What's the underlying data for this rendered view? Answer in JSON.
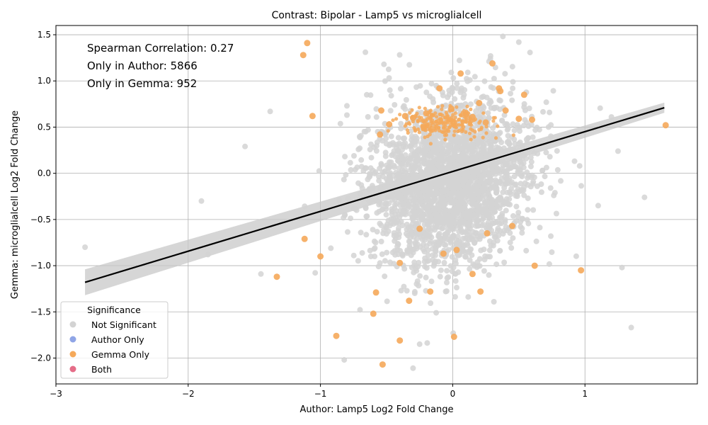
{
  "chart_data": {
    "type": "scatter",
    "title": "Contrast: Bipolar - Lamp5 vs microglialcell",
    "xlabel": "Author: Lamp5 Log2 Fold Change",
    "ylabel": "Gemma: microglialcell Log2 Fold Change",
    "xlim": [
      -3.0,
      1.85
    ],
    "ylim": [
      -2.28,
      1.6
    ],
    "xticks": [
      -3,
      -2,
      -1,
      0,
      1
    ],
    "xtick_labels": [
      "−3",
      "−2",
      "−1",
      "0",
      "1"
    ],
    "yticks": [
      -2.0,
      -1.5,
      -1.0,
      -0.5,
      0.0,
      0.5,
      1.0,
      1.5
    ],
    "ytick_labels": [
      "−2.0",
      "−1.5",
      "−1.0",
      "−0.5",
      "0.0",
      "0.5",
      "1.0",
      "1.5"
    ],
    "grid": true,
    "annotations": [
      "Spearman Correlation: 0.27",
      "Only in Author: 5866",
      "Only in Gemma: 952"
    ],
    "legend": {
      "title": "Significance",
      "location": "lower-left",
      "entries": [
        {
          "label": "Not Significant",
          "color": "#d3d3d3"
        },
        {
          "label": "Author Only",
          "color": "#8fa5e6"
        },
        {
          "label": "Gemma Only",
          "color": "#f5a95a"
        },
        {
          "label": "Both",
          "color": "#e56d88"
        }
      ]
    },
    "regression": {
      "x": [
        -2.78,
        1.6
      ],
      "y": [
        -1.18,
        0.71
      ],
      "ci_lower": [
        -1.32,
        0.655
      ],
      "ci_upper": [
        -1.04,
        0.765
      ],
      "color": "#000000"
    },
    "series": [
      {
        "name": "Gemma Only",
        "color": "#f5a95a",
        "x": [
          -1.1,
          -1.13,
          -1.06,
          0.3,
          0.06,
          0.5,
          -0.54,
          0.36,
          0.54,
          -0.55,
          0.2,
          0.35,
          -0.36,
          -0.48,
          -0.2,
          0.6,
          1.61,
          -0.01,
          0.1,
          -0.1,
          0.0,
          0.25,
          -0.3,
          0.4,
          -0.22,
          0.15,
          -1.12,
          -1.0,
          -1.33,
          -0.4,
          0.62,
          0.97,
          0.15,
          -0.88,
          -0.4,
          0.01,
          -0.53,
          -0.17,
          0.21,
          -0.58,
          -0.6,
          -0.33,
          -0.07,
          0.03,
          -0.25,
          0.26,
          0.45
        ],
        "y": [
          1.41,
          1.28,
          0.62,
          1.19,
          1.08,
          0.59,
          0.68,
          0.89,
          0.85,
          0.42,
          0.76,
          0.92,
          0.62,
          0.53,
          0.65,
          0.58,
          0.52,
          0.7,
          0.64,
          0.92,
          0.56,
          0.55,
          0.6,
          0.68,
          0.5,
          0.61,
          -0.71,
          -0.9,
          -1.12,
          -0.97,
          -1.0,
          -1.05,
          -1.09,
          -1.76,
          -1.81,
          -1.77,
          -2.07,
          -1.28,
          -1.28,
          -1.29,
          -1.52,
          -1.38,
          -0.87,
          -0.83,
          -0.6,
          -0.65,
          -0.57
        ]
      }
    ],
    "background_points": {
      "name": "Not Significant",
      "color": "#d3d3d3",
      "count": 2600,
      "center": [
        -0.02,
        -0.1
      ],
      "spread": [
        0.3,
        0.44
      ],
      "extreme_x": [
        -2.78,
        -1.9,
        -1.85,
        -1.57,
        -1.45,
        -1.38,
        1.25,
        1.28,
        1.35,
        1.45,
        1.2,
        1.1,
        0.96,
        0.5,
        -0.82,
        -0.25,
        -0.52,
        -0.65,
        -0.3,
        -0.8
      ],
      "extreme_y": [
        -0.8,
        -0.3,
        -0.88,
        0.29,
        -1.09,
        0.67,
        0.24,
        -1.02,
        -1.67,
        -0.26,
        0.61,
        -0.35,
        0.08,
        1.42,
        -2.02,
        -1.85,
        1.18,
        0.85,
        -2.11,
        0.63
      ]
    }
  }
}
